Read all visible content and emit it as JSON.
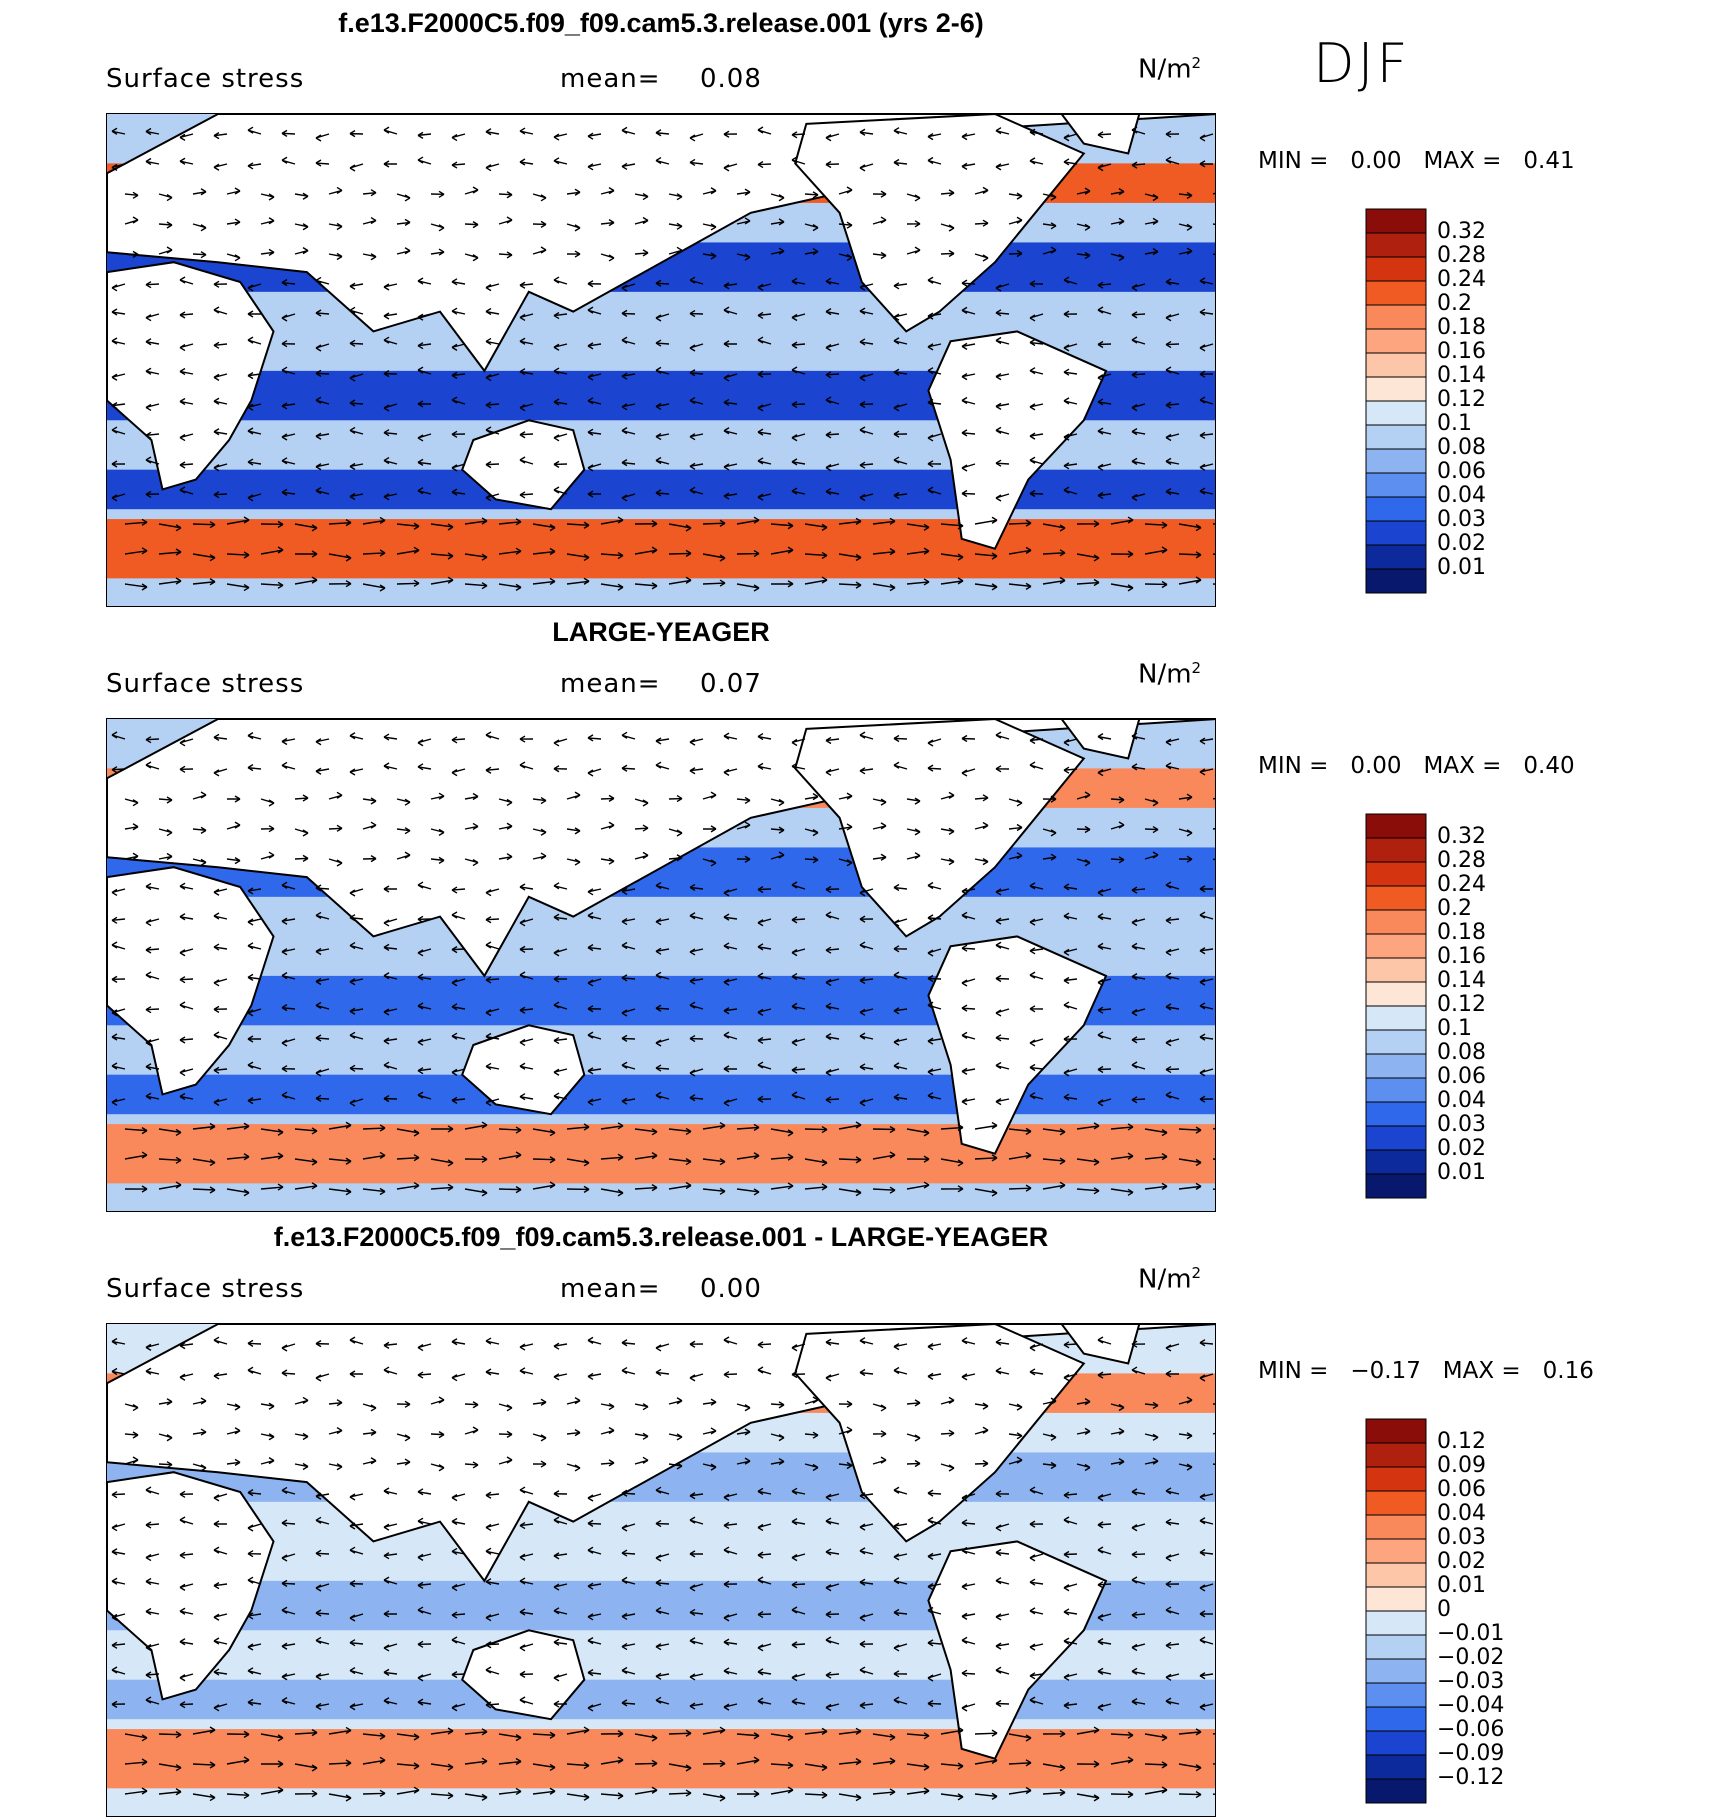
{
  "season": "DJF",
  "chart_data": [
    {
      "type": "heatmap",
      "title": "f.e13.F2000C5.f09_f09.cam5.3.release.001 (yrs 2-6)",
      "variable": "Surface stress",
      "mean_label": "mean=",
      "mean": "0.08",
      "units": "N/m",
      "units_exp": "2",
      "min_label": "MIN =",
      "min": "0.00",
      "max_label": "MAX =",
      "max": "0.41",
      "colorbar_levels": [
        "0.32",
        "0.28",
        "0.24",
        "0.2",
        "0.18",
        "0.16",
        "0.14",
        "0.12",
        "0.1",
        "0.08",
        "0.06",
        "0.04",
        "0.03",
        "0.02",
        "0.01"
      ],
      "colorbar_colors": [
        "#8b0d09",
        "#b0200f",
        "#d4340f",
        "#f05a23",
        "#f9885a",
        "#fca57e",
        "#fdc6a8",
        "#fde6d6",
        "#d6e8f8",
        "#b4d0f3",
        "#8db4f0",
        "#5c8ff0",
        "#2f68ea",
        "#1b45d0",
        "#0c2a9c",
        "#07186d"
      ],
      "map_colors": {
        "ocean_low": "#1b45d0",
        "ocean_mid": "#b4d0f3",
        "ocean_high": "#f05a23",
        "land": "#ffffff"
      }
    },
    {
      "type": "heatmap",
      "title": "LARGE-YEAGER",
      "variable": "Surface stress",
      "mean_label": "mean=",
      "mean": "0.07",
      "units": "N/m",
      "units_exp": "2",
      "min_label": "MIN =",
      "min": "0.00",
      "max_label": "MAX =",
      "max": "0.40",
      "colorbar_levels": [
        "0.32",
        "0.28",
        "0.24",
        "0.2",
        "0.18",
        "0.16",
        "0.14",
        "0.12",
        "0.1",
        "0.08",
        "0.06",
        "0.04",
        "0.03",
        "0.02",
        "0.01"
      ],
      "colorbar_colors": [
        "#8b0d09",
        "#b0200f",
        "#d4340f",
        "#f05a23",
        "#f9885a",
        "#fca57e",
        "#fdc6a8",
        "#fde6d6",
        "#d6e8f8",
        "#b4d0f3",
        "#8db4f0",
        "#5c8ff0",
        "#2f68ea",
        "#1b45d0",
        "#0c2a9c",
        "#07186d"
      ],
      "map_colors": {
        "ocean_low": "#2f68ea",
        "ocean_mid": "#b4d0f3",
        "ocean_high": "#f9885a",
        "land": "#ffffff"
      }
    },
    {
      "type": "heatmap",
      "title": "f.e13.F2000C5.f09_f09.cam5.3.release.001 - LARGE-YEAGER",
      "variable": "Surface stress",
      "mean_label": "mean=",
      "mean": "0.00",
      "units": "N/m",
      "units_exp": "2",
      "min_label": "MIN =",
      "min": "−0.17",
      "max_label": "MAX =",
      "max": "0.16",
      "colorbar_levels": [
        "0.12",
        "0.09",
        "0.06",
        "0.04",
        "0.03",
        "0.02",
        "0.01",
        "0",
        "−0.01",
        "−0.02",
        "−0.03",
        "−0.04",
        "−0.06",
        "−0.09",
        "−0.12"
      ],
      "colorbar_colors": [
        "#8b0d09",
        "#b0200f",
        "#d4340f",
        "#f05a23",
        "#f9885a",
        "#fca57e",
        "#fdc6a8",
        "#fde6d6",
        "#d6e8f8",
        "#b4d0f3",
        "#8db4f0",
        "#5c8ff0",
        "#2f68ea",
        "#1b45d0",
        "#0c2a9c",
        "#07186d"
      ],
      "map_colors": {
        "ocean_low": "#8db4f0",
        "ocean_mid": "#d6e8f8",
        "ocean_high": "#f9885a",
        "land": "#ffffff"
      }
    }
  ]
}
